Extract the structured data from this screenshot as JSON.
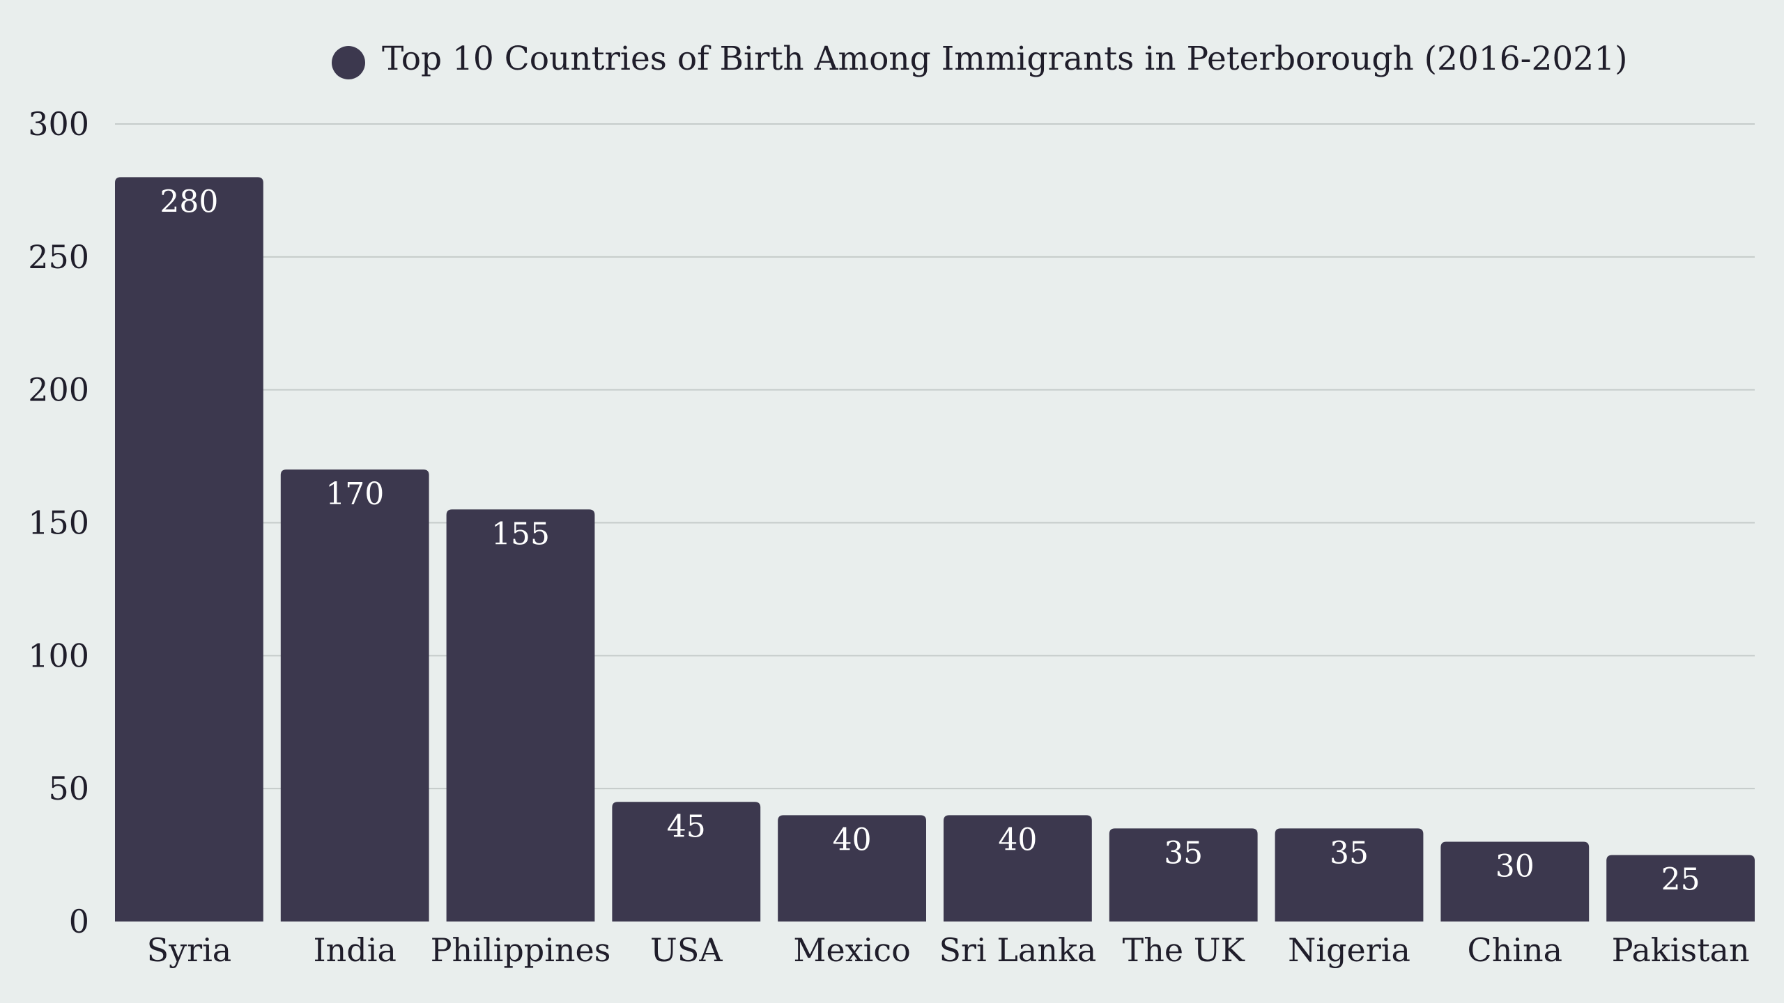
{
  "chart_data": {
    "type": "bar",
    "title": "Top 10 Countries of Birth Among Immigrants in Peterborough (2016-2021)",
    "legend": [
      {
        "label": "Top 10 Countries of Birth Among Immigrants in Peterborough (2016-2021)",
        "color": "#3c384e"
      }
    ],
    "legend_position": "top-center",
    "categories": [
      "Syria",
      "India",
      "Philippines",
      "USA",
      "Mexico",
      "Sri Lanka",
      "The UK",
      "Nigeria",
      "China",
      "Pakistan"
    ],
    "values": [
      280,
      170,
      155,
      45,
      40,
      40,
      35,
      35,
      30,
      25
    ],
    "data_labels": [
      "280",
      "170",
      "155",
      "45",
      "40",
      "40",
      "35",
      "35",
      "30",
      "25"
    ],
    "y_ticks": [
      "0",
      "50",
      "100",
      "150",
      "200",
      "250",
      "300"
    ],
    "ylim": [
      0,
      300
    ],
    "xlabel": "",
    "ylabel": "",
    "grid": true,
    "colors": {
      "bar": "#3c384e",
      "background": "#e9eeed",
      "gridline": "#c5cbca",
      "text": "#1f1d2a",
      "data_label": "#ffffff"
    }
  }
}
